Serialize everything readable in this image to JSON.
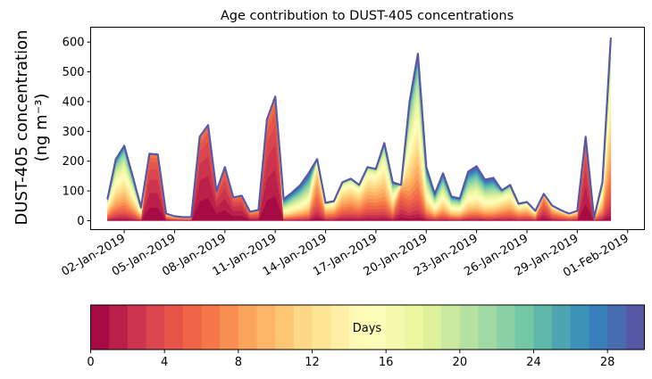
{
  "chart_data": {
    "type": "area",
    "stacked": true,
    "title": "Age contribution to DUST-405 concentrations",
    "ylabel_line1": "DUST-405 concentration",
    "ylabel_line2": "(ng m⁻³)",
    "xlabel": "",
    "ylim": [
      -30,
      650
    ],
    "yticks": [
      0,
      100,
      200,
      300,
      400,
      500,
      600
    ],
    "x_start_day": 1,
    "x_step_days": 0.5,
    "xlim_days": [
      0.0,
      33.0
    ],
    "xticks": [
      {
        "day": 2,
        "label": "02-Jan-2019"
      },
      {
        "day": 5,
        "label": "05-Jan-2019"
      },
      {
        "day": 8,
        "label": "08-Jan-2019"
      },
      {
        "day": 11,
        "label": "11-Jan-2019"
      },
      {
        "day": 14,
        "label": "14-Jan-2019"
      },
      {
        "day": 17,
        "label": "17-Jan-2019"
      },
      {
        "day": 20,
        "label": "20-Jan-2019"
      },
      {
        "day": 23,
        "label": "23-Jan-2019"
      },
      {
        "day": 26,
        "label": "26-Jan-2019"
      },
      {
        "day": 29,
        "label": "29-Jan-2019"
      },
      {
        "day": 32,
        "label": "01-Feb-2019"
      }
    ],
    "total": [
      72,
      207,
      252,
      150,
      45,
      225,
      222,
      24,
      15,
      12,
      12,
      282,
      321,
      99,
      180,
      78,
      84,
      30,
      36,
      339,
      417,
      72,
      95,
      120,
      160,
      207,
      60,
      66,
      129,
      141,
      120,
      180,
      174,
      261,
      129,
      120,
      399,
      561,
      180,
      90,
      159,
      81,
      75,
      165,
      183,
      138,
      144,
      102,
      120,
      57,
      63,
      33,
      90,
      51,
      36,
      24,
      33,
      282,
      9,
      129,
      615
    ],
    "dominant_age_days": [
      10,
      12,
      12,
      12,
      12,
      1,
      1,
      5,
      5,
      5,
      5,
      0.5,
      0.5,
      0.5,
      1,
      1,
      1,
      3,
      3,
      1,
      1,
      18,
      18,
      18,
      18,
      6,
      8,
      8,
      8,
      8,
      8,
      8,
      8,
      10,
      12,
      3,
      12,
      12,
      15,
      15,
      15,
      14,
      14,
      17,
      17,
      17,
      17,
      10,
      10,
      8,
      8,
      8,
      3,
      6,
      6,
      6,
      6,
      1,
      5,
      10,
      10
    ],
    "colorbar": {
      "label": "Days",
      "range": [
        0,
        30
      ],
      "n_levels": 30,
      "ticks": [
        0,
        4,
        8,
        12,
        16,
        20,
        24,
        28
      ],
      "colormap": [
        "#9e0142",
        "#d53e4f",
        "#f46d43",
        "#fdae61",
        "#fee08b",
        "#ffffbf",
        "#e6f598",
        "#abdda4",
        "#66c2a5",
        "#3288bd",
        "#5e4fa2"
      ]
    }
  }
}
